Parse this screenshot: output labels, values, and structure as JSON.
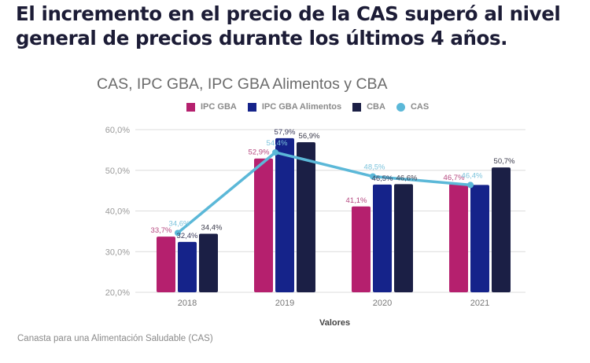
{
  "headline": {
    "line1": "El incremento en el precio de la CAS superó al nivel",
    "line2": "general de precios durante los últimos 4 años."
  },
  "footer": "Canasta para una Alimentación Saludable (CAS)",
  "chart_data": {
    "type": "bar",
    "title": "CAS, IPC GBA, IPC GBA Alimentos y CBA",
    "xlabel": "Valores",
    "ylabel": "",
    "categories": [
      "2018",
      "2019",
      "2020",
      "2021"
    ],
    "ylim": [
      20,
      60
    ],
    "yticks": [
      20,
      30,
      40,
      50,
      60
    ],
    "ytick_labels": [
      "20,0%",
      "30,0%",
      "40,0%",
      "50,0%",
      "60,0%"
    ],
    "grid": true,
    "legend_position": "top",
    "series": [
      {
        "name": "IPC GBA",
        "kind": "bar",
        "color": "#b5206e",
        "label_color": "#b5477f",
        "values": [
          33.7,
          52.9,
          41.1,
          46.7
        ],
        "labels": [
          "33,7%",
          "52,9%",
          "41,1%",
          "46,7%"
        ]
      },
      {
        "name": "IPC GBA Alimentos",
        "kind": "bar",
        "color": "#15238a",
        "label_color": "#3a3a5a",
        "values": [
          32.4,
          57.9,
          46.5,
          46.4
        ],
        "labels": [
          "32,4%",
          "57,9%",
          "46,5%",
          ""
        ]
      },
      {
        "name": "CBA",
        "kind": "bar",
        "color": "#1b1f45",
        "label_color": "#3a3a4a",
        "values": [
          34.4,
          56.9,
          46.6,
          50.7
        ],
        "labels": [
          "34,4%",
          "56,9%",
          "46,6%",
          "50,7%"
        ]
      },
      {
        "name": "CAS",
        "kind": "line",
        "color": "#5bb8d8",
        "label_color": "#7cc3dc",
        "values": [
          34.6,
          54.4,
          48.5,
          46.4
        ],
        "labels": [
          "34,6%",
          "54,4%",
          "48,5%",
          "46,4%"
        ]
      }
    ]
  }
}
